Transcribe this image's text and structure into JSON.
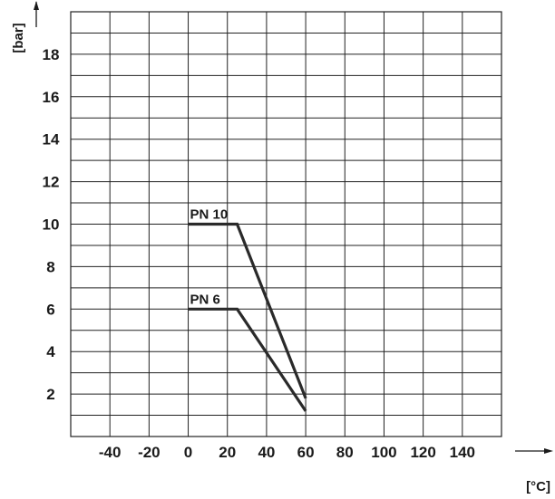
{
  "chart_data": {
    "type": "line",
    "title": "",
    "xlabel": "[°C]",
    "ylabel": "[bar]",
    "x_ticks": [
      "-40",
      "-20",
      "0",
      "20",
      "40",
      "60",
      "80",
      "100",
      "120",
      "140"
    ],
    "y_ticks": [
      "2",
      "4",
      "6",
      "8",
      "10",
      "12",
      "14",
      "16",
      "18"
    ],
    "xlim": [
      -60,
      160
    ],
    "ylim": [
      0,
      20
    ],
    "grid": true,
    "series": [
      {
        "name": "PN 10",
        "x": [
          0,
          25,
          60
        ],
        "y": [
          10,
          10,
          1.8
        ]
      },
      {
        "name": "PN 6",
        "x": [
          0,
          25,
          60
        ],
        "y": [
          6,
          6,
          1.2
        ]
      }
    ]
  }
}
